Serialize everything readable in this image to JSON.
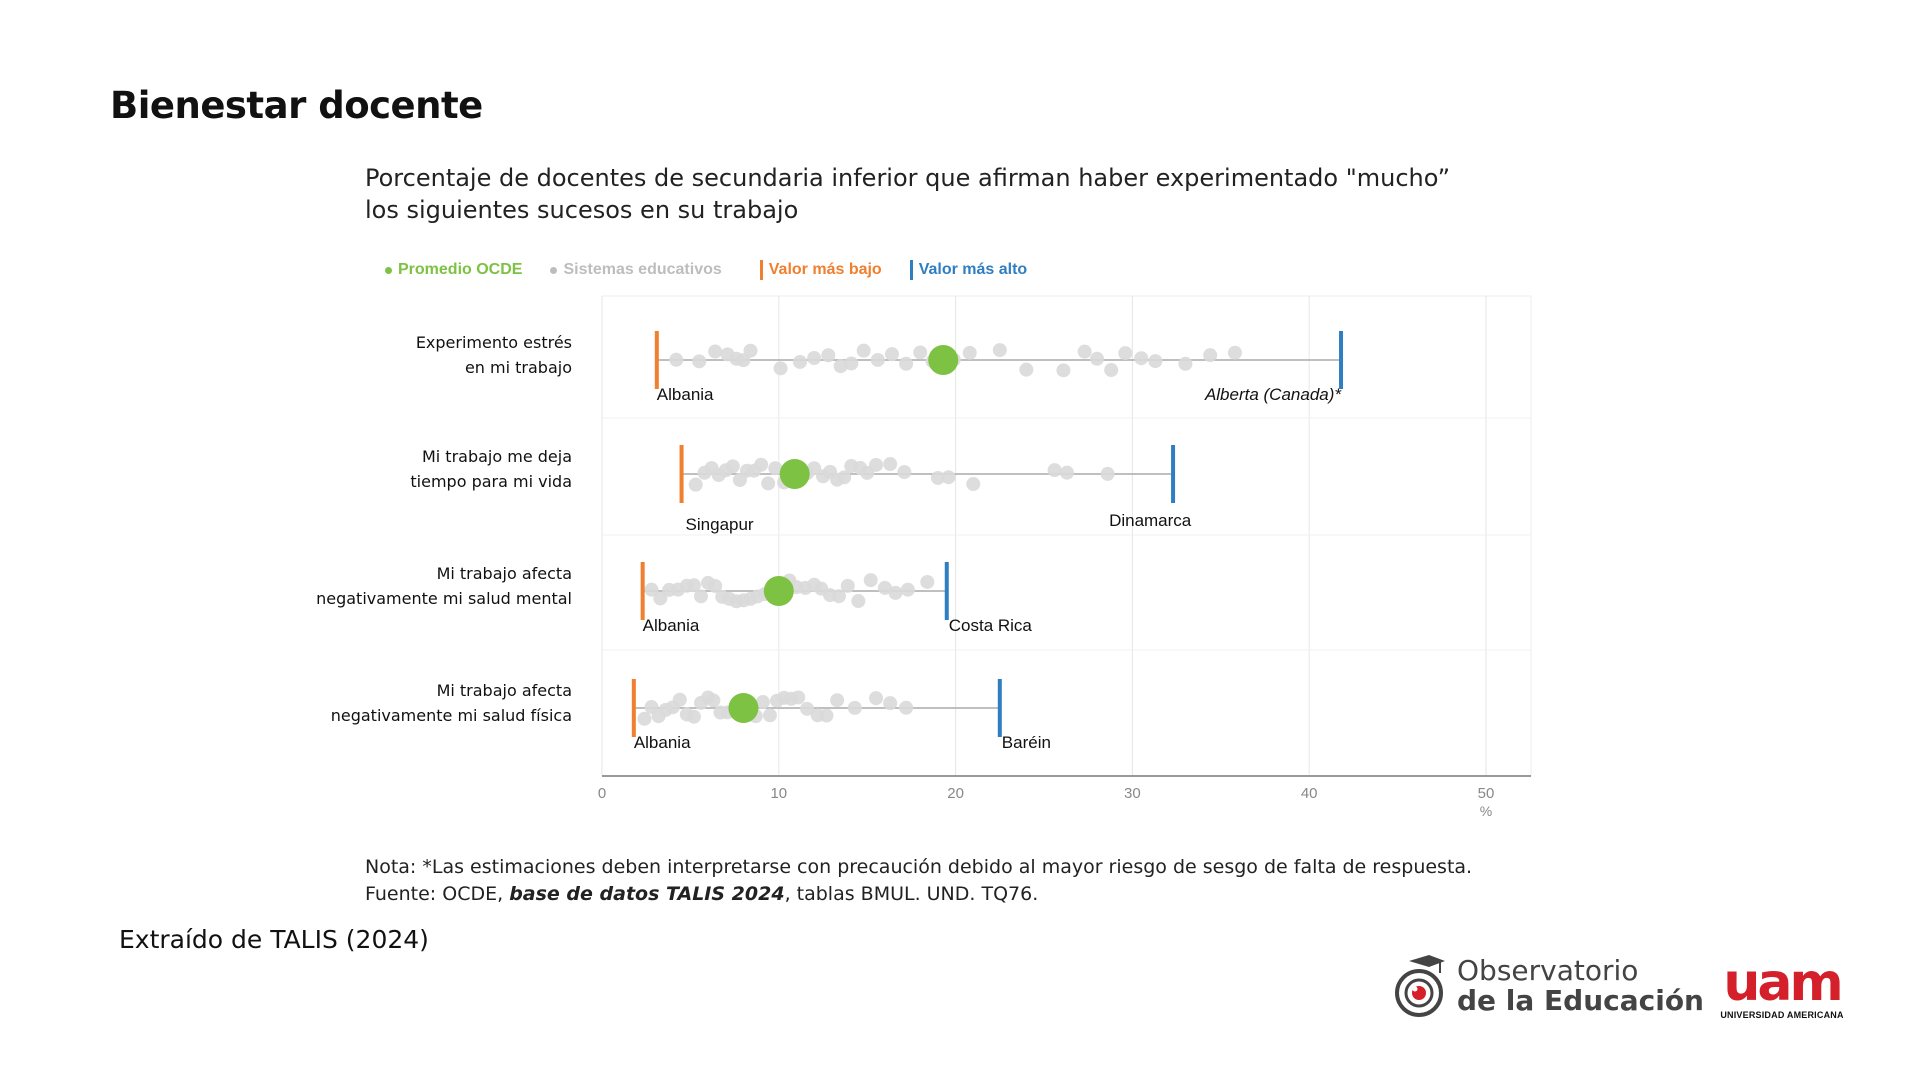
{
  "slide": {
    "title": "Bienestar docente",
    "caption": "Extraído de TALIS (2024)"
  },
  "figure": {
    "title": "Porcentaje de docentes de secundaria inferior que afirman haber experimentado \"mucho” los siguientes sucesos en su trabajo",
    "legend": {
      "oecd": "Promedio OCDE",
      "systems": "Sistemas educativos",
      "lowest": "Valor más bajo",
      "highest": "Valor más alto"
    },
    "note": "Nota: *Las estimaciones deben interpretarse con precaución debido al mayor riesgo de sesgo de falta de respuesta.",
    "source_prefix": "Fuente: OCDE, ",
    "source_em": "base de datos TALIS 2024",
    "source_suffix": ", tablas BMUL. UND. TQ76."
  },
  "colors": {
    "oecd": "#7dc242",
    "systems": "#d9d9d9",
    "lowest": "#f07f2f",
    "highest": "#2f7ec1",
    "axis": "#999999",
    "range": "#aaaaaa"
  },
  "chart_data": {
    "type": "scatter",
    "xlim": [
      0,
      50
    ],
    "xticks": [
      0,
      10,
      20,
      30,
      40,
      50
    ],
    "xlabel": "%",
    "grid": true,
    "legend_position": "top",
    "rows": [
      {
        "label_lines": [
          "Experimento estrés",
          "en mi trabajo"
        ],
        "low": 3.1,
        "low_label": "Albania",
        "high": 41.8,
        "high_label": "Alberta (Canada)*",
        "oecd": 19.3,
        "systems": [
          4.2,
          5.5,
          6.4,
          7.1,
          7.6,
          8.0,
          8.4,
          10.1,
          11.2,
          12.0,
          12.8,
          13.5,
          14.1,
          14.8,
          15.6,
          16.4,
          17.2,
          18.0,
          18.7,
          19.9,
          20.8,
          22.5,
          24.0,
          26.1,
          27.3,
          28.0,
          28.8,
          29.6,
          30.5,
          31.3,
          33.0,
          34.4,
          35.8
        ]
      },
      {
        "label_lines": [
          "Mi trabajo me deja",
          "tiempo para mi vida"
        ],
        "low": 4.5,
        "low_label": "Singapur",
        "high": 32.3,
        "high_label": "Dinamarca",
        "oecd": 10.9,
        "systems": [
          5.3,
          5.8,
          6.2,
          6.6,
          7.0,
          7.4,
          7.8,
          8.2,
          8.6,
          9.0,
          9.4,
          9.8,
          10.3,
          11.6,
          12.0,
          12.5,
          12.9,
          13.3,
          13.7,
          14.1,
          14.6,
          15.0,
          15.5,
          16.3,
          17.1,
          19.0,
          19.6,
          21.0,
          25.6,
          26.3,
          28.6
        ]
      },
      {
        "label_lines": [
          "Mi trabajo afecta",
          "negativamente mi salud mental"
        ],
        "low": 2.3,
        "low_label": "Albania",
        "high": 19.5,
        "high_label": "Costa Rica",
        "oecd": 10.0,
        "systems": [
          2.8,
          3.3,
          3.8,
          4.3,
          4.8,
          5.2,
          5.6,
          6.0,
          6.4,
          6.8,
          7.2,
          7.6,
          8.0,
          8.4,
          8.8,
          9.2,
          9.6,
          10.6,
          11.0,
          11.5,
          12.0,
          12.4,
          12.9,
          13.4,
          13.9,
          14.5,
          15.2,
          16.0,
          16.6,
          17.3,
          18.4
        ]
      },
      {
        "label_lines": [
          "Mi trabajo afecta",
          "negativamente mi salud física"
        ],
        "low": 1.8,
        "low_label": "Albania",
        "high": 22.5,
        "high_label": "Baréin",
        "oecd": 8.0,
        "systems": [
          2.4,
          2.8,
          3.2,
          3.6,
          4.0,
          4.4,
          4.8,
          5.2,
          5.6,
          6.0,
          6.3,
          6.7,
          7.1,
          7.5,
          8.7,
          9.1,
          9.5,
          9.9,
          10.3,
          10.7,
          11.1,
          11.6,
          12.2,
          12.7,
          13.3,
          14.3,
          15.5,
          16.3,
          17.2
        ]
      }
    ]
  }
}
